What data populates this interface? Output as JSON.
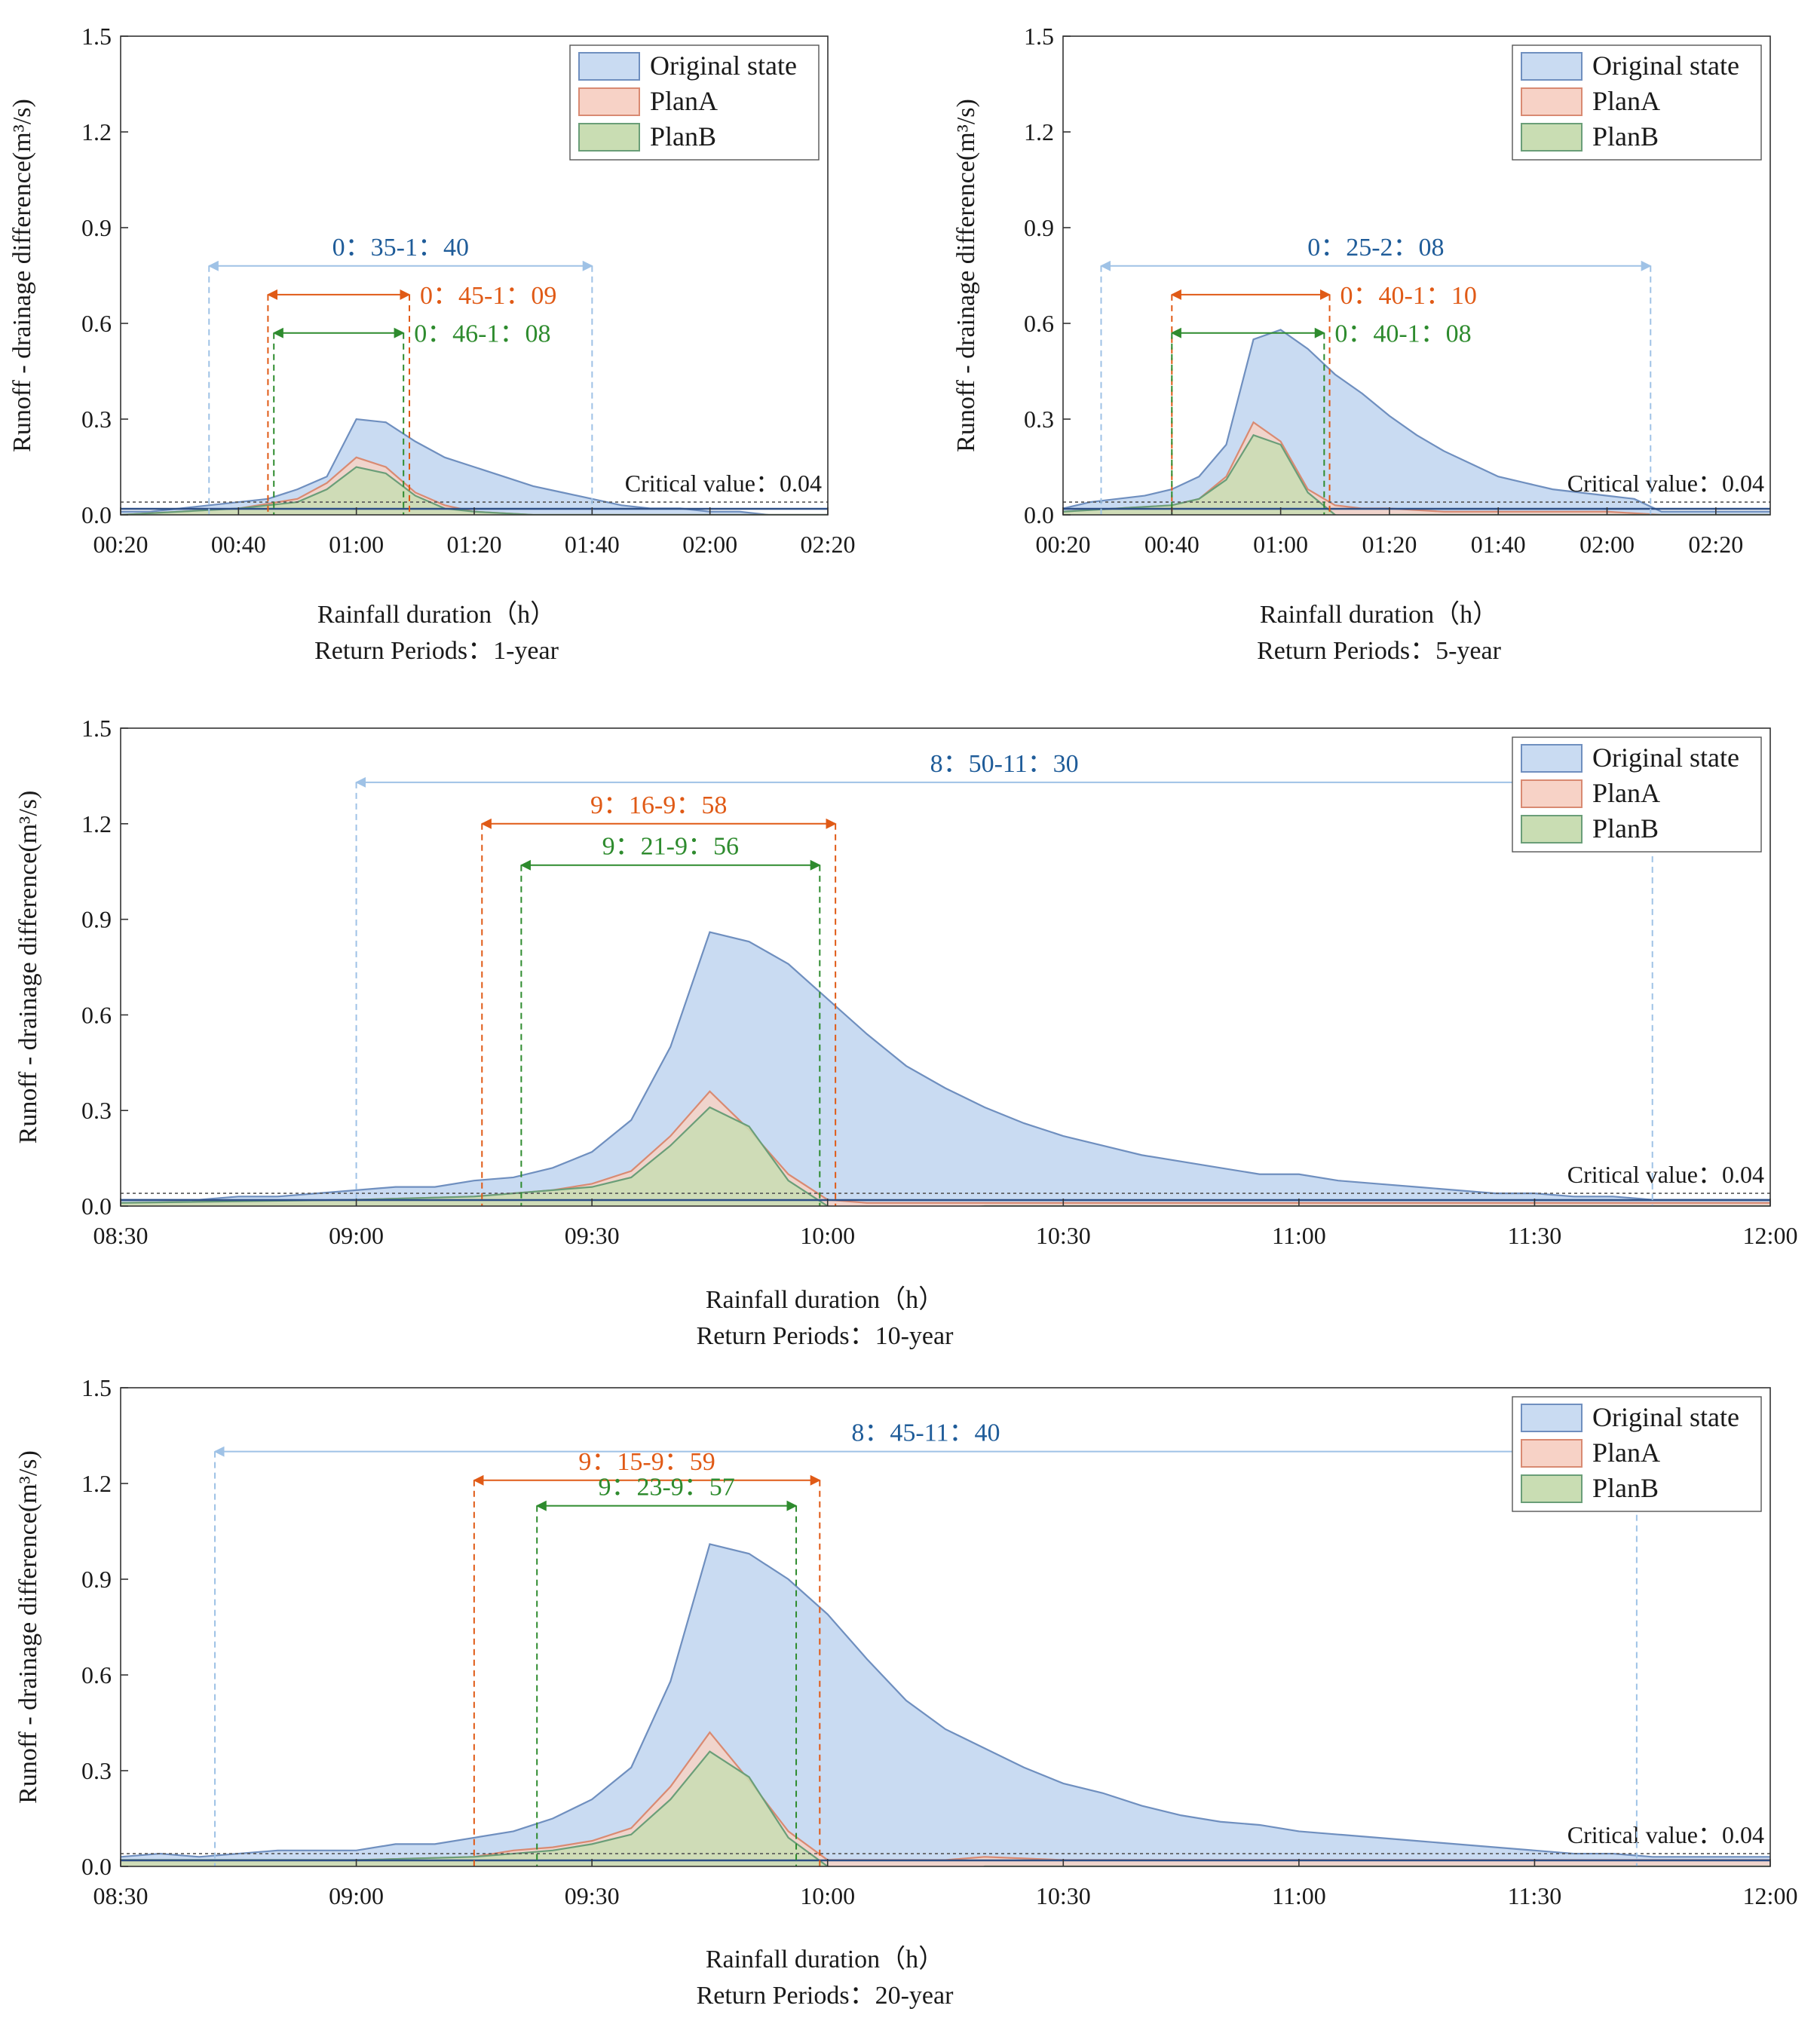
{
  "colors": {
    "original_fill": "#c9dbf2",
    "original_line": "#6f8fbf",
    "planA_fill": "#f7d2c6",
    "planA_line": "#d98a72",
    "planB_fill": "#c9ddb3",
    "planB_line": "#6a9e78",
    "blue_text": "#1f5c99",
    "orange_text": "#e05a16",
    "green_text": "#2e8b2e",
    "light_blue": "#9fc2e6",
    "critical": "#555555"
  },
  "y_axis_label": "Runoff - drainage difference(m³/s)",
  "chart_data": [
    {
      "id": "p1",
      "type": "area",
      "xlabel": "Rainfall duration（h）",
      "subtitle": "Return Periods：1-year",
      "xlim": [
        20,
        140
      ],
      "ylim": [
        0,
        1.5
      ],
      "xticks": [
        20,
        40,
        60,
        80,
        100,
        120,
        140
      ],
      "xtick_labels": [
        "00:20",
        "00:40",
        "01:00",
        "01:20",
        "01:40",
        "02:00",
        "02:20"
      ],
      "yticks": [
        0,
        0.3,
        0.6,
        0.9,
        1.2,
        1.5
      ],
      "ytick_labels": [
        "0.0",
        "0.3",
        "0.6",
        "0.9",
        "1.2",
        "1.5"
      ],
      "legend": [
        "Original state",
        "PlanA",
        "PlanB"
      ],
      "legend_position": "top-right",
      "critical_value": 0.04,
      "critical_label": "Critical value：0.04",
      "series": [
        {
          "name": "Original state",
          "x": [
            20,
            25,
            30,
            35,
            40,
            45,
            50,
            55,
            60,
            65,
            70,
            75,
            80,
            85,
            90,
            95,
            100,
            105,
            110,
            115,
            120,
            125,
            130,
            135,
            140
          ],
          "values": [
            0.01,
            0.01,
            0.02,
            0.03,
            0.04,
            0.05,
            0.08,
            0.12,
            0.3,
            0.29,
            0.23,
            0.18,
            0.15,
            0.12,
            0.09,
            0.07,
            0.05,
            0.03,
            0.02,
            0.02,
            0.01,
            0.01,
            0.0,
            0.0,
            0.0
          ]
        },
        {
          "name": "PlanA",
          "x": [
            20,
            30,
            40,
            50,
            55,
            60,
            65,
            70,
            75,
            80,
            90,
            100,
            110,
            120,
            130,
            140
          ],
          "values": [
            0.0,
            0.01,
            0.02,
            0.05,
            0.1,
            0.18,
            0.15,
            0.07,
            0.03,
            0.01,
            0.0,
            0.0,
            0.0,
            0.0,
            0.0,
            0.0
          ]
        },
        {
          "name": "PlanB",
          "x": [
            20,
            30,
            40,
            50,
            55,
            60,
            65,
            70,
            75,
            80,
            90,
            100,
            110,
            120,
            130,
            140
          ],
          "values": [
            0.0,
            0.01,
            0.02,
            0.04,
            0.08,
            0.15,
            0.13,
            0.06,
            0.02,
            0.01,
            0.0,
            0.0,
            0.0,
            0.0,
            0.0,
            0.0
          ]
        }
      ],
      "annotations": [
        {
          "label": "0：35-1：40",
          "x1": 35,
          "x2": 100,
          "y": 0.78,
          "color": "light",
          "text_color": "blue"
        },
        {
          "label": "0：45-1：09",
          "x1": 45,
          "x2": 69,
          "y": 0.69,
          "color": "orange",
          "text_color": "orange"
        },
        {
          "label": "0：46-1：08",
          "x1": 46,
          "x2": 68,
          "y": 0.57,
          "color": "green",
          "text_color": "green"
        }
      ]
    },
    {
      "id": "p2",
      "type": "area",
      "xlabel": "Rainfall duration（h）",
      "subtitle": "Return Periods：5-year",
      "xlim": [
        20,
        150
      ],
      "ylim": [
        0,
        1.5
      ],
      "xticks": [
        20,
        40,
        60,
        80,
        100,
        120,
        140
      ],
      "xtick_labels": [
        "00:20",
        "00:40",
        "01:00",
        "01:20",
        "01:40",
        "02:00",
        "02:20"
      ],
      "yticks": [
        0,
        0.3,
        0.6,
        0.9,
        1.2,
        1.5
      ],
      "ytick_labels": [
        "0.0",
        "0.3",
        "0.6",
        "0.9",
        "1.2",
        "1.5"
      ],
      "legend": [
        "Original state",
        "PlanA",
        "PlanB"
      ],
      "legend_position": "top-right",
      "critical_value": 0.04,
      "critical_label": "Critical value：0.04",
      "series": [
        {
          "name": "Original state",
          "x": [
            20,
            25,
            30,
            35,
            40,
            45,
            50,
            55,
            60,
            65,
            70,
            75,
            80,
            85,
            90,
            95,
            100,
            105,
            110,
            115,
            120,
            125,
            130,
            135,
            140,
            145,
            150
          ],
          "values": [
            0.02,
            0.04,
            0.05,
            0.06,
            0.08,
            0.12,
            0.22,
            0.55,
            0.58,
            0.52,
            0.44,
            0.38,
            0.31,
            0.25,
            0.2,
            0.16,
            0.12,
            0.1,
            0.08,
            0.07,
            0.06,
            0.05,
            0.01,
            0.01,
            0.01,
            0.01,
            0.01
          ]
        },
        {
          "name": "PlanA",
          "x": [
            20,
            30,
            40,
            45,
            50,
            55,
            60,
            65,
            70,
            75,
            80,
            90,
            100,
            110,
            120,
            130,
            140,
            150
          ],
          "values": [
            0.01,
            0.02,
            0.03,
            0.05,
            0.12,
            0.29,
            0.23,
            0.08,
            0.03,
            0.02,
            0.02,
            0.01,
            0.01,
            0.01,
            0.01,
            0.0,
            0.0,
            0.0
          ]
        },
        {
          "name": "PlanB",
          "x": [
            20,
            30,
            40,
            45,
            50,
            55,
            60,
            65,
            70,
            75,
            80,
            90,
            100,
            110,
            120,
            130,
            140,
            150
          ],
          "values": [
            0.01,
            0.02,
            0.03,
            0.05,
            0.11,
            0.25,
            0.22,
            0.07,
            0.0,
            -0.03,
            0.0,
            0.0,
            0.0,
            0.0,
            0.0,
            0.0,
            0.0,
            0.0
          ]
        }
      ],
      "annotations": [
        {
          "label": "0：25-2：08",
          "x1": 27,
          "x2": 128,
          "y": 0.78,
          "color": "light",
          "text_color": "blue"
        },
        {
          "label": "0：40-1：10",
          "x1": 40,
          "x2": 69,
          "y": 0.69,
          "color": "orange",
          "text_color": "orange"
        },
        {
          "label": "0：40-1：08",
          "x1": 40,
          "x2": 68,
          "y": 0.57,
          "color": "green",
          "text_color": "green"
        }
      ]
    },
    {
      "id": "p3",
      "type": "area",
      "xlabel": "Rainfall duration（h）",
      "subtitle": "Return Periods：10-year",
      "xlim": [
        510,
        720
      ],
      "ylim": [
        0,
        1.5
      ],
      "xticks": [
        510,
        540,
        570,
        600,
        630,
        660,
        690,
        720
      ],
      "xtick_labels": [
        "08:30",
        "09:00",
        "09:30",
        "10:00",
        "10:30",
        "11:00",
        "11:30",
        "12:00"
      ],
      "yticks": [
        0,
        0.3,
        0.6,
        0.9,
        1.2,
        1.5
      ],
      "ytick_labels": [
        "0.0",
        "0.3",
        "0.6",
        "0.9",
        "1.2",
        "1.5"
      ],
      "legend": [
        "Original state",
        "PlanA",
        "PlanB"
      ],
      "legend_position": "top-right",
      "critical_value": 0.04,
      "critical_label": "Critical value：0.04",
      "series": [
        {
          "name": "Original state",
          "x": [
            510,
            515,
            520,
            525,
            530,
            535,
            540,
            545,
            550,
            555,
            560,
            565,
            570,
            575,
            580,
            585,
            590,
            595,
            600,
            605,
            610,
            615,
            620,
            625,
            630,
            635,
            640,
            645,
            650,
            655,
            660,
            665,
            670,
            675,
            680,
            685,
            690,
            695,
            700,
            705,
            710,
            715,
            720
          ],
          "values": [
            0.02,
            0.02,
            0.02,
            0.03,
            0.03,
            0.04,
            0.05,
            0.06,
            0.06,
            0.08,
            0.09,
            0.12,
            0.17,
            0.27,
            0.5,
            0.86,
            0.83,
            0.76,
            0.65,
            0.54,
            0.44,
            0.37,
            0.31,
            0.26,
            0.22,
            0.19,
            0.16,
            0.14,
            0.12,
            0.1,
            0.1,
            0.08,
            0.07,
            0.06,
            0.05,
            0.04,
            0.04,
            0.03,
            0.03,
            0.02,
            0.02,
            0.02,
            0.02
          ]
        },
        {
          "name": "PlanA",
          "x": [
            510,
            540,
            555,
            560,
            565,
            570,
            575,
            580,
            585,
            590,
            595,
            600,
            605,
            610,
            615,
            620,
            630,
            650,
            670,
            690,
            710,
            720
          ],
          "values": [
            0.01,
            0.02,
            0.03,
            0.04,
            0.05,
            0.07,
            0.11,
            0.22,
            0.36,
            0.24,
            0.1,
            0.02,
            0.01,
            0.01,
            0.01,
            0.01,
            0.01,
            0.01,
            0.01,
            0.01,
            0.01,
            0.01
          ]
        },
        {
          "name": "PlanB",
          "x": [
            510,
            540,
            555,
            560,
            565,
            570,
            575,
            580,
            585,
            590,
            595,
            600,
            605,
            610,
            615,
            620,
            630,
            650,
            670,
            690,
            710,
            720
          ],
          "values": [
            0.01,
            0.02,
            0.03,
            0.04,
            0.05,
            0.06,
            0.09,
            0.19,
            0.31,
            0.25,
            0.08,
            0.0,
            -0.03,
            -0.04,
            -0.01,
            0.0,
            0.0,
            0.0,
            0.0,
            0.0,
            0.0,
            0.0
          ]
        }
      ],
      "annotations": [
        {
          "label": "8：50-11：30",
          "x1": 540,
          "x2": 705,
          "y": 1.33,
          "color": "light",
          "text_color": "blue",
          "arrow": "left"
        },
        {
          "label": "9：16-9：58",
          "x1": 556,
          "x2": 601,
          "y": 1.2,
          "color": "orange",
          "text_color": "orange"
        },
        {
          "label": "9：21-9：56",
          "x1": 561,
          "x2": 599,
          "y": 1.07,
          "color": "green",
          "text_color": "green"
        }
      ]
    },
    {
      "id": "p4",
      "type": "area",
      "xlabel": "Rainfall duration（h）",
      "subtitle": "Return Periods：20-year",
      "xlim": [
        510,
        720
      ],
      "ylim": [
        0,
        1.5
      ],
      "xticks": [
        510,
        540,
        570,
        600,
        630,
        660,
        690,
        720
      ],
      "xtick_labels": [
        "08:30",
        "09:00",
        "09:30",
        "10:00",
        "10:30",
        "11:00",
        "11:30",
        "12:00"
      ],
      "yticks": [
        0,
        0.3,
        0.6,
        0.9,
        1.2,
        1.5
      ],
      "ytick_labels": [
        "0.0",
        "0.3",
        "0.6",
        "0.9",
        "1.2",
        "1.5"
      ],
      "legend": [
        "Original state",
        "PlanA",
        "PlanB"
      ],
      "legend_position": "top-right",
      "critical_value": 0.04,
      "critical_label": "Critical value：0.04",
      "series": [
        {
          "name": "Original state",
          "x": [
            510,
            515,
            520,
            525,
            530,
            535,
            540,
            545,
            550,
            555,
            560,
            565,
            570,
            575,
            580,
            585,
            590,
            595,
            600,
            605,
            610,
            615,
            620,
            625,
            630,
            635,
            640,
            645,
            650,
            655,
            660,
            665,
            670,
            675,
            680,
            685,
            690,
            695,
            700,
            705,
            710,
            715,
            720
          ],
          "values": [
            0.03,
            0.04,
            0.03,
            0.04,
            0.05,
            0.05,
            0.05,
            0.07,
            0.07,
            0.09,
            0.11,
            0.15,
            0.21,
            0.31,
            0.58,
            1.01,
            0.98,
            0.9,
            0.79,
            0.65,
            0.52,
            0.43,
            0.37,
            0.31,
            0.26,
            0.23,
            0.19,
            0.16,
            0.14,
            0.13,
            0.11,
            0.1,
            0.09,
            0.08,
            0.07,
            0.06,
            0.05,
            0.04,
            0.04,
            0.03,
            0.03,
            0.03,
            0.03
          ]
        },
        {
          "name": "PlanA",
          "x": [
            510,
            540,
            555,
            560,
            565,
            570,
            575,
            580,
            585,
            590,
            595,
            600,
            605,
            610,
            615,
            620,
            630,
            650,
            670,
            690,
            710,
            720
          ],
          "values": [
            0.02,
            0.02,
            0.03,
            0.05,
            0.06,
            0.08,
            0.12,
            0.25,
            0.42,
            0.27,
            0.11,
            0.02,
            0.02,
            0.02,
            0.02,
            0.03,
            0.02,
            0.02,
            0.02,
            0.02,
            0.02,
            0.02
          ]
        },
        {
          "name": "PlanB",
          "x": [
            510,
            540,
            555,
            560,
            565,
            570,
            575,
            580,
            585,
            590,
            595,
            600,
            605,
            610,
            615,
            620,
            630,
            650,
            670,
            690,
            710,
            720
          ],
          "values": [
            0.02,
            0.02,
            0.03,
            0.04,
            0.05,
            0.07,
            0.1,
            0.21,
            0.36,
            0.28,
            0.09,
            0.0,
            -0.03,
            -0.04,
            -0.04,
            0.0,
            0.0,
            0.0,
            0.0,
            0.0,
            0.0,
            0.0
          ]
        }
      ],
      "annotations": [
        {
          "label": "8：45-11：40",
          "x1": 522,
          "x2": 703,
          "y": 1.3,
          "color": "light",
          "text_color": "blue",
          "arrow": "left"
        },
        {
          "label": "9：15-9：59",
          "x1": 555,
          "x2": 599,
          "y": 1.21,
          "color": "orange",
          "text_color": "orange"
        },
        {
          "label": "9：23-9：57",
          "x1": 563,
          "x2": 596,
          "y": 1.13,
          "color": "green",
          "text_color": "green"
        }
      ]
    }
  ]
}
